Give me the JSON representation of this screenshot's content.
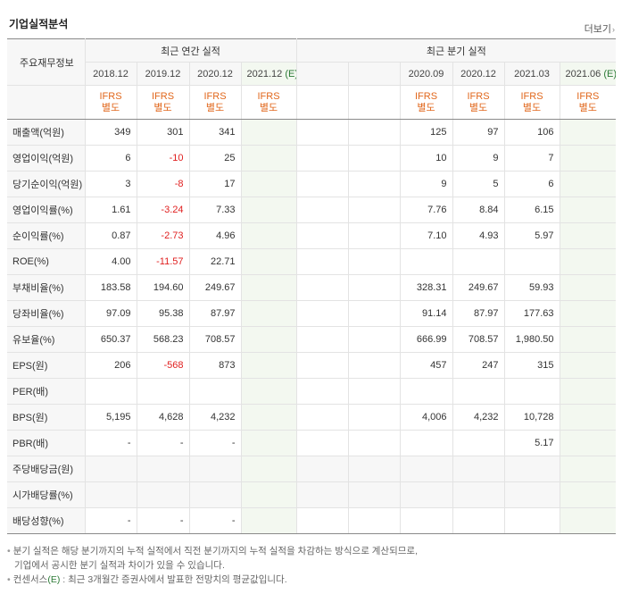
{
  "header": {
    "title": "기업실적분석",
    "more_label": "더보기"
  },
  "table": {
    "corner_label": "주요재무정보",
    "group_annual": "최근 연간 실적",
    "group_quarter": "최근 분기 실적",
    "annual_periods": [
      "2018.12",
      "2019.12",
      "2020.12",
      "2021.12"
    ],
    "annual_est_suffix": "(E)",
    "quarter_periods": [
      "2020.09",
      "2020.12",
      "2021.03",
      "2021.06"
    ],
    "quarter_est_suffix": "(E)",
    "ifrs_line1": "IFRS",
    "ifrs_line2": "별도",
    "rows": [
      {
        "label": "매출액(억원)",
        "annual": [
          "349",
          "301",
          "341",
          "",
          "",
          ""
        ],
        "quarter": [
          "",
          "125",
          "97",
          "106",
          ""
        ],
        "shade": false
      },
      {
        "label": "영업이익(억원)",
        "annual": [
          "6",
          "-10",
          "25",
          "",
          "",
          ""
        ],
        "quarter": [
          "",
          "10",
          "9",
          "7",
          ""
        ],
        "shade": false
      },
      {
        "label": "당기순이익(억원)",
        "annual": [
          "3",
          "-8",
          "17",
          "",
          "",
          ""
        ],
        "quarter": [
          "",
          "9",
          "5",
          "6",
          ""
        ],
        "shade": false
      },
      {
        "label": "영업이익률(%)",
        "annual": [
          "1.61",
          "-3.24",
          "7.33",
          "",
          "",
          ""
        ],
        "quarter": [
          "",
          "7.76",
          "8.84",
          "6.15",
          ""
        ],
        "shade": false
      },
      {
        "label": "순이익률(%)",
        "annual": [
          "0.87",
          "-2.73",
          "4.96",
          "",
          "",
          ""
        ],
        "quarter": [
          "",
          "7.10",
          "4.93",
          "5.97",
          ""
        ],
        "shade": false
      },
      {
        "label": "ROE(%)",
        "annual": [
          "4.00",
          "-11.57",
          "22.71",
          "",
          "",
          ""
        ],
        "quarter": [
          "",
          "",
          "",
          "",
          ""
        ],
        "shade": false
      },
      {
        "label": "부채비율(%)",
        "annual": [
          "183.58",
          "194.60",
          "249.67",
          "",
          "",
          ""
        ],
        "quarter": [
          "",
          "328.31",
          "249.67",
          "59.93",
          ""
        ],
        "shade": false
      },
      {
        "label": "당좌비율(%)",
        "annual": [
          "97.09",
          "95.38",
          "87.97",
          "",
          "",
          ""
        ],
        "quarter": [
          "",
          "91.14",
          "87.97",
          "177.63",
          ""
        ],
        "shade": false
      },
      {
        "label": "유보율(%)",
        "annual": [
          "650.37",
          "568.23",
          "708.57",
          "",
          "",
          ""
        ],
        "quarter": [
          "",
          "666.99",
          "708.57",
          "1,980.50",
          ""
        ],
        "shade": false
      },
      {
        "label": "EPS(원)",
        "annual": [
          "206",
          "-568",
          "873",
          "",
          "",
          ""
        ],
        "quarter": [
          "",
          "457",
          "247",
          "315",
          ""
        ],
        "shade": false
      },
      {
        "label": "PER(배)",
        "annual": [
          "",
          "",
          "",
          "",
          "",
          ""
        ],
        "quarter": [
          "",
          "",
          "",
          "",
          ""
        ],
        "shade": false
      },
      {
        "label": "BPS(원)",
        "annual": [
          "5,195",
          "4,628",
          "4,232",
          "",
          "",
          ""
        ],
        "quarter": [
          "",
          "4,006",
          "4,232",
          "10,728",
          ""
        ],
        "shade": false
      },
      {
        "label": "PBR(배)",
        "annual": [
          "-",
          "-",
          "-",
          "",
          "",
          ""
        ],
        "quarter": [
          "",
          "",
          "",
          "5.17",
          ""
        ],
        "shade": false
      },
      {
        "label": "주당배당금(원)",
        "annual": [
          "",
          "",
          "",
          "",
          "",
          ""
        ],
        "quarter": [
          "",
          "",
          "",
          "",
          ""
        ],
        "shade": true
      },
      {
        "label": "시가배당률(%)",
        "annual": [
          "",
          "",
          "",
          "",
          "",
          ""
        ],
        "quarter": [
          "",
          "",
          "",
          "",
          ""
        ],
        "shade": true
      },
      {
        "label": "배당성향(%)",
        "annual": [
          "-",
          "-",
          "-",
          "",
          "",
          ""
        ],
        "quarter": [
          "",
          "",
          "",
          "",
          ""
        ],
        "shade": false
      }
    ]
  },
  "notes": {
    "line1": "분기 실적은 해당 분기까지의 누적 실적에서 직전 분기까지의 누적 실적을 차감하는 방식으로 계산되므로,",
    "line2": "기업에서 공시한 분기 실적과 차이가 있을 수 있습니다.",
    "line3_prefix": "컨센서스",
    "line3_e": "(E)",
    "line3_rest": ": 최근 3개월간 증권사에서 발표한 전망치의 평균값입니다."
  },
  "colors": {
    "negative": "#e01f1f",
    "ifrs": "#e1671c",
    "estimate_tag": "#2b7a35",
    "estimate_bg": "#f3f8f0"
  }
}
